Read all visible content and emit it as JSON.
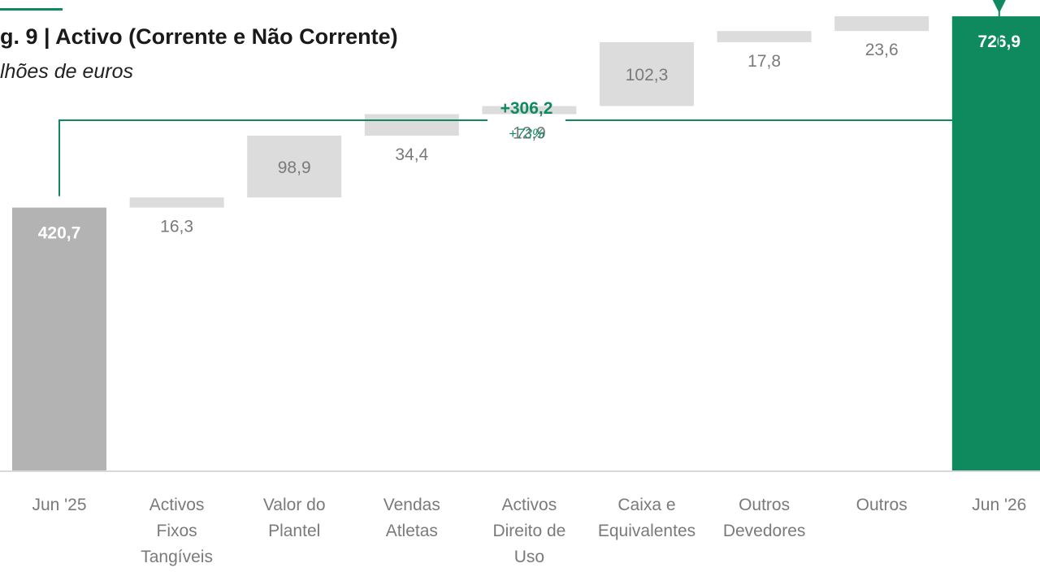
{
  "title": "g. 9 | Activo (Corrente e Não Corrente)",
  "subtitle": "lhões de euros",
  "colors": {
    "total_start": "#b3b3b3",
    "step": "#dcdcdc",
    "total_end": "#0f8a5f",
    "accent": "#0f8a5f",
    "axis": "#d9d9d9"
  },
  "chart_data": {
    "type": "bar",
    "subtype": "waterfall",
    "title": "g. 9 | Activo (Corrente e Não Corrente)",
    "subtitle": "lhões de euros",
    "categories": [
      [
        "Jun '25"
      ],
      [
        "Activos",
        "Fixos",
        "Tangíveis"
      ],
      [
        "Valor do",
        "Plantel"
      ],
      [
        "Vendas",
        "Atletas"
      ],
      [
        "Activos",
        "Direito de",
        "Uso"
      ],
      [
        "Caixa e",
        "Equivalentes"
      ],
      [
        "Outros",
        "Devedores"
      ],
      [
        "Outros"
      ],
      [
        "Jun '26"
      ]
    ],
    "values": [
      420.7,
      16.3,
      98.9,
      34.4,
      12.9,
      102.3,
      17.8,
      23.6,
      726.9
    ],
    "labels": [
      "420,7",
      "16,3",
      "98,9",
      "34,4",
      "12,9",
      "102,3",
      "17,8",
      "23,6",
      "726,9"
    ],
    "kinds": [
      "total",
      "step",
      "step",
      "step",
      "step",
      "step",
      "step",
      "step",
      "total"
    ],
    "ylim": [
      0,
      740
    ],
    "grid": false,
    "legend": "none",
    "annotation": {
      "text": "+306,2",
      "subtext": "+73%"
    }
  }
}
